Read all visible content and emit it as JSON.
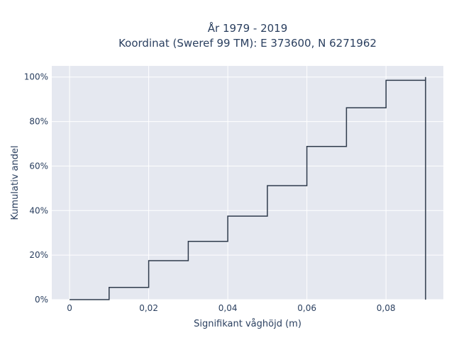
{
  "chart_data": {
    "type": "line",
    "line_shape": "step",
    "title_line1": "År 1979 - 2019",
    "title_line2": "Koordinat (Sweref 99 TM): E 373600, N 6271962",
    "xlabel": "Signifikant våghöjd (m)",
    "ylabel": "Kumulativ andel",
    "xlim": [
      -0.0045,
      0.0945
    ],
    "ylim": [
      0,
      1.05
    ],
    "x_ticks": [
      0,
      0.02,
      0.04,
      0.06,
      0.08
    ],
    "x_tick_labels": [
      "0",
      "0,02",
      "0,04",
      "0,06",
      "0,08"
    ],
    "y_ticks": [
      0,
      0.2,
      0.4,
      0.6,
      0.8,
      1.0
    ],
    "y_tick_labels": [
      "0%",
      "20%",
      "40%",
      "60%",
      "80%",
      "100%"
    ],
    "grid": true,
    "colors": {
      "background": "#e5e8f0",
      "grid": "#ffffff",
      "line": "#2f3b4c",
      "text": "#2a3f5f"
    },
    "series": [
      {
        "x": [
          0,
          0.01,
          0.02,
          0.03,
          0.04,
          0.05,
          0.06,
          0.07,
          0.08,
          0.09
        ],
        "y": [
          0.0,
          0.055,
          0.175,
          0.262,
          0.375,
          0.512,
          0.688,
          0.862,
          0.985,
          1.0
        ]
      }
    ]
  }
}
